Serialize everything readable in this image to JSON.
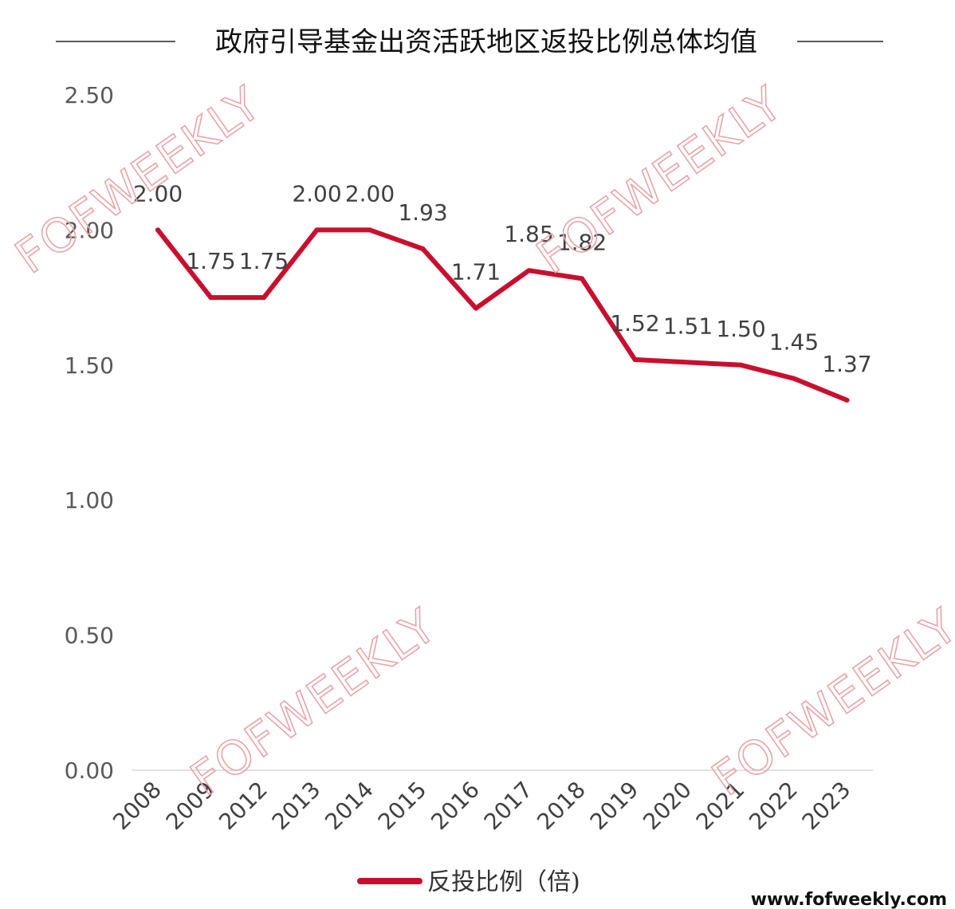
{
  "chart_data": {
    "type": "line",
    "title": "政府引导基金出资活跃地区返投比例总体均值",
    "categories": [
      "2008",
      "2009",
      "2012",
      "2013",
      "2014",
      "2015",
      "2016",
      "2017",
      "2018",
      "2019",
      "2020",
      "2021",
      "2022",
      "2023"
    ],
    "series": [
      {
        "name": "反投比例（倍)",
        "values": [
          2.0,
          1.75,
          1.75,
          2.0,
          2.0,
          1.93,
          1.71,
          1.85,
          1.82,
          1.52,
          1.51,
          1.5,
          1.45,
          1.37
        ],
        "labels": [
          "2.00",
          "1.75",
          "1.75",
          "2.00",
          "2.00",
          "1.93",
          "1.71",
          "1.85",
          "1.82",
          "1.52",
          "1.51",
          "1.50",
          "1.45",
          "1.37"
        ],
        "color": "#c8102e"
      }
    ],
    "ylim": [
      0,
      2.5
    ],
    "yticks": [
      "0.00",
      "0.50",
      "1.00",
      "1.50",
      "2.00",
      "2.50"
    ],
    "grid": false,
    "legend": "bottom"
  },
  "watermark": "FOFWEEKLY",
  "site_url": "www.fofweekly.com"
}
